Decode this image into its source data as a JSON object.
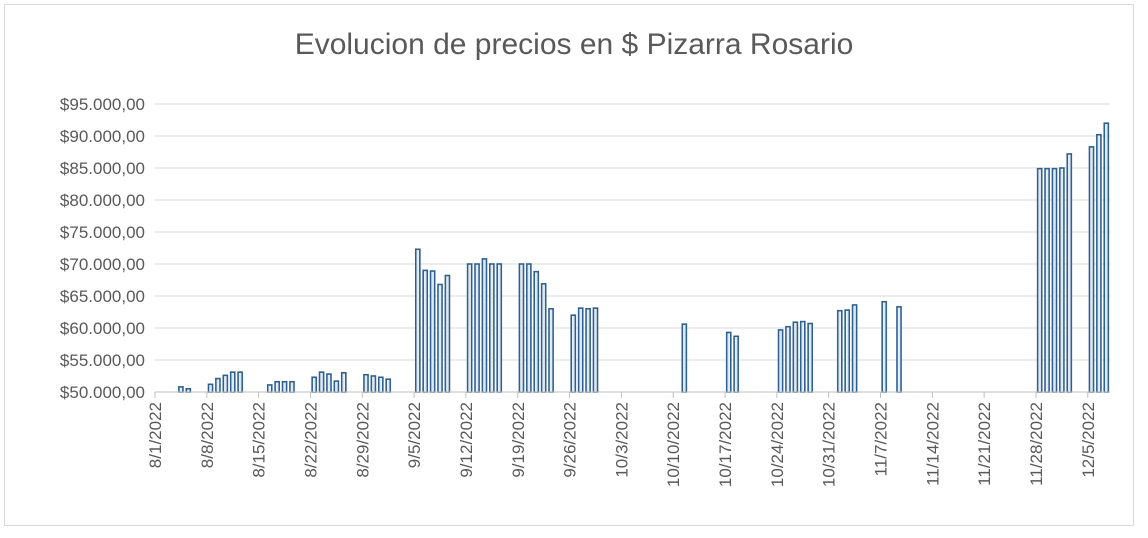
{
  "chart_data": {
    "type": "bar",
    "title": "Evolucion de precios en $ Pizarra Rosario",
    "xlabel": "",
    "ylabel": "",
    "ylim": [
      50000,
      95000
    ],
    "y_ticks": [
      50000,
      55000,
      60000,
      65000,
      70000,
      75000,
      80000,
      85000,
      90000,
      95000
    ],
    "y_tick_labels": [
      "$50.000,00",
      "$55.000,00",
      "$60.000,00",
      "$65.000,00",
      "$70.000,00",
      "$75.000,00",
      "$80.000,00",
      "$85.000,00",
      "$90.000,00",
      "$95.000,00"
    ],
    "x_tick_labels": [
      "8/1/2022",
      "8/8/2022",
      "8/15/2022",
      "8/22/2022",
      "8/29/2022",
      "9/5/2022",
      "9/12/2022",
      "9/19/2022",
      "9/26/2022",
      "10/3/2022",
      "10/10/2022",
      "10/17/2022",
      "10/24/2022",
      "10/31/2022",
      "11/7/2022",
      "11/14/2022",
      "11/21/2022",
      "11/28/2022",
      "12/5/2022"
    ],
    "x_start": "2022-08-01",
    "x_end": "2022-12-08",
    "grid": true,
    "bar_color": "#5b9bd5",
    "bar_edge_color": "#2e5f8f",
    "points": [
      {
        "date": "2022-08-04",
        "value": 50800
      },
      {
        "date": "2022-08-05",
        "value": 50500
      },
      {
        "date": "2022-08-08",
        "value": 51200
      },
      {
        "date": "2022-08-09",
        "value": 52100
      },
      {
        "date": "2022-08-10",
        "value": 52600
      },
      {
        "date": "2022-08-11",
        "value": 53100
      },
      {
        "date": "2022-08-12",
        "value": 53100
      },
      {
        "date": "2022-08-16",
        "value": 51100
      },
      {
        "date": "2022-08-17",
        "value": 51600
      },
      {
        "date": "2022-08-18",
        "value": 51600
      },
      {
        "date": "2022-08-19",
        "value": 51600
      },
      {
        "date": "2022-08-22",
        "value": 52300
      },
      {
        "date": "2022-08-23",
        "value": 53100
      },
      {
        "date": "2022-08-24",
        "value": 52800
      },
      {
        "date": "2022-08-25",
        "value": 51700
      },
      {
        "date": "2022-08-26",
        "value": 53000
      },
      {
        "date": "2022-08-29",
        "value": 52700
      },
      {
        "date": "2022-08-30",
        "value": 52500
      },
      {
        "date": "2022-08-31",
        "value": 52300
      },
      {
        "date": "2022-09-01",
        "value": 52000
      },
      {
        "date": "2022-09-05",
        "value": 72300
      },
      {
        "date": "2022-09-06",
        "value": 69000
      },
      {
        "date": "2022-09-07",
        "value": 68900
      },
      {
        "date": "2022-09-08",
        "value": 66800
      },
      {
        "date": "2022-09-09",
        "value": 68200
      },
      {
        "date": "2022-09-12",
        "value": 70000
      },
      {
        "date": "2022-09-13",
        "value": 70000
      },
      {
        "date": "2022-09-14",
        "value": 70800
      },
      {
        "date": "2022-09-15",
        "value": 70000
      },
      {
        "date": "2022-09-16",
        "value": 70000
      },
      {
        "date": "2022-09-19",
        "value": 70000
      },
      {
        "date": "2022-09-20",
        "value": 70000
      },
      {
        "date": "2022-09-21",
        "value": 68800
      },
      {
        "date": "2022-09-22",
        "value": 66900
      },
      {
        "date": "2022-09-23",
        "value": 63000
      },
      {
        "date": "2022-09-26",
        "value": 62000
      },
      {
        "date": "2022-09-27",
        "value": 63100
      },
      {
        "date": "2022-09-28",
        "value": 63000
      },
      {
        "date": "2022-09-29",
        "value": 63100
      },
      {
        "date": "2022-10-11",
        "value": 60600
      },
      {
        "date": "2022-10-17",
        "value": 59300
      },
      {
        "date": "2022-10-18",
        "value": 58700
      },
      {
        "date": "2022-10-24",
        "value": 59700
      },
      {
        "date": "2022-10-25",
        "value": 60200
      },
      {
        "date": "2022-10-26",
        "value": 60900
      },
      {
        "date": "2022-10-27",
        "value": 61000
      },
      {
        "date": "2022-10-28",
        "value": 60700
      },
      {
        "date": "2022-11-01",
        "value": 62700
      },
      {
        "date": "2022-11-02",
        "value": 62800
      },
      {
        "date": "2022-11-03",
        "value": 63600
      },
      {
        "date": "2022-11-07",
        "value": 64100
      },
      {
        "date": "2022-11-09",
        "value": 63300
      },
      {
        "date": "2022-11-28",
        "value": 84900
      },
      {
        "date": "2022-11-29",
        "value": 84900
      },
      {
        "date": "2022-11-30",
        "value": 84900
      },
      {
        "date": "2022-12-01",
        "value": 85000
      },
      {
        "date": "2022-12-02",
        "value": 87200
      },
      {
        "date": "2022-12-05",
        "value": 88300
      },
      {
        "date": "2022-12-06",
        "value": 90200
      },
      {
        "date": "2022-12-07",
        "value": 92000
      }
    ]
  }
}
